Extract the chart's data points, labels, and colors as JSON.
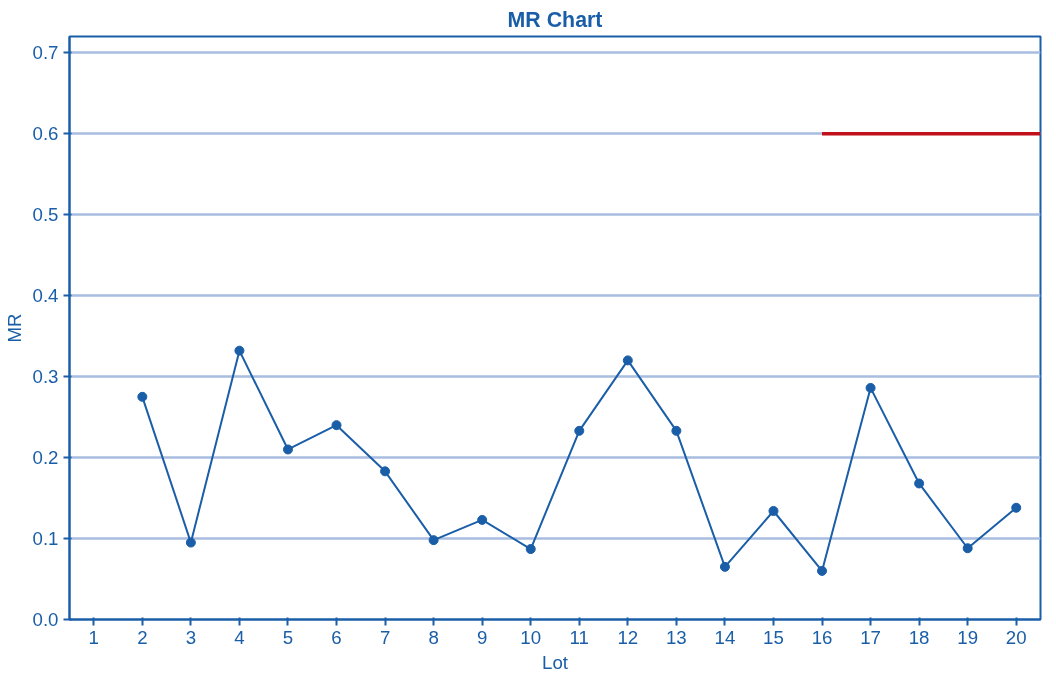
{
  "chart_data": {
    "type": "line",
    "title": "MR Chart",
    "xlabel": "Lot",
    "ylabel": "MR",
    "x": [
      2,
      3,
      4,
      5,
      6,
      7,
      8,
      9,
      10,
      11,
      12,
      13,
      14,
      15,
      16,
      17,
      18,
      19,
      20
    ],
    "series": [
      {
        "color": "#1a5ea8",
        "marker": "circle",
        "values": [
          0.275,
          0.095,
          0.332,
          0.21,
          0.24,
          0.183,
          0.098,
          0.123,
          0.087,
          0.233,
          0.32,
          0.233,
          0.065,
          0.134,
          0.06,
          0.286,
          0.168,
          0.088,
          0.138
        ]
      },
      {
        "color": "#c0111a",
        "marker": "none",
        "x": [
          16,
          20.5
        ],
        "values": [
          0.6,
          0.6
        ]
      }
    ],
    "xlim": [
      0.5,
      20.5
    ],
    "xticks": [
      1,
      2,
      3,
      4,
      5,
      6,
      7,
      8,
      9,
      10,
      11,
      12,
      13,
      14,
      15,
      16,
      17,
      18,
      19,
      20
    ],
    "ylim": [
      0,
      0.72
    ],
    "yticks": [
      {
        "value": 0,
        "label": "0.0"
      },
      0.1,
      0.2,
      0.3,
      0.4,
      0.5,
      0.6,
      0.7
    ],
    "grid": "y",
    "line_style": "solid"
  }
}
